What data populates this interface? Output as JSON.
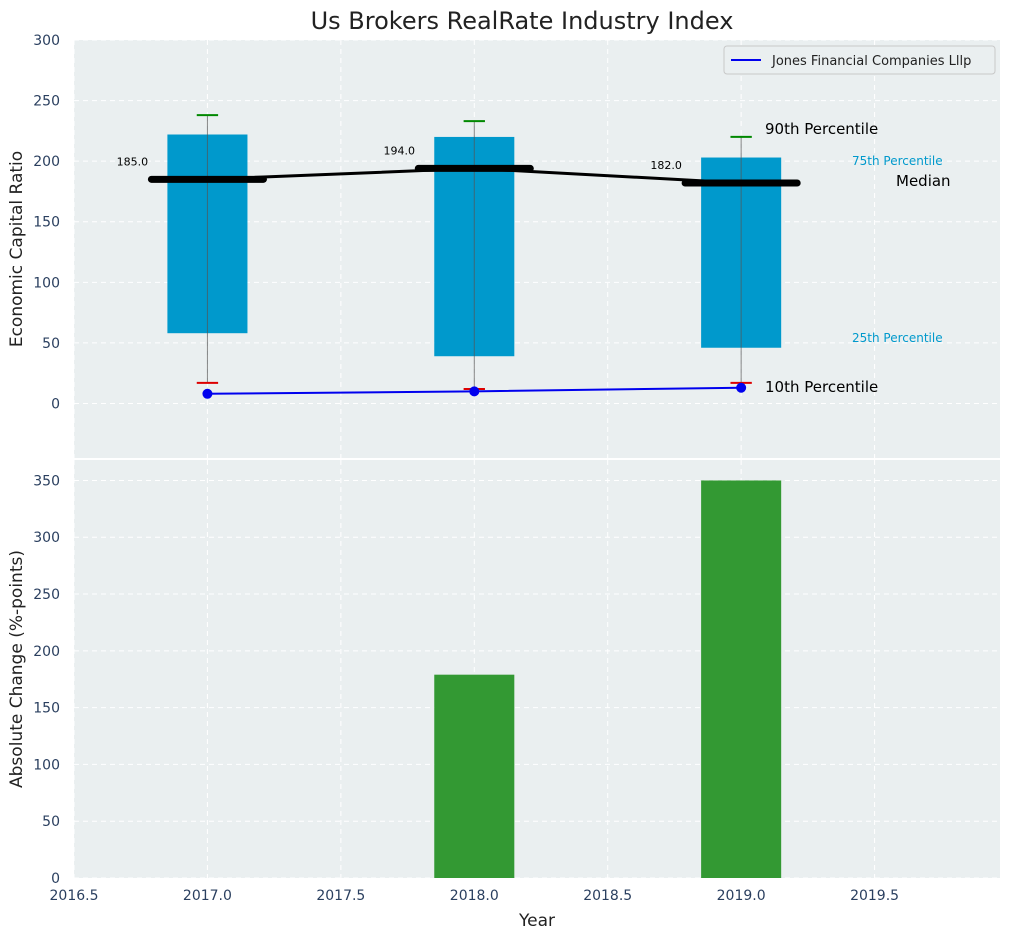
{
  "title": "Us Brokers RealRate Industry Index",
  "colors": {
    "plot_bg": "#eaeff0",
    "box": "#0099cc",
    "median": "#000000",
    "p90_cap": "#008800",
    "p10_cap": "#dd0000",
    "company_line": "#0000ee",
    "change_bar": "#339933",
    "grid": "#ffffff",
    "cyan_text": "#0099cc"
  },
  "chart_data": [
    {
      "type": "box",
      "ylabel": "Economic Capital Ratio",
      "xlim": [
        2016.5,
        2019.97
      ],
      "ylim": [
        -45,
        300
      ],
      "yticks": [
        0,
        50,
        100,
        150,
        200,
        250,
        300
      ],
      "grid": true,
      "legend_position": "top-right",
      "boxes": [
        {
          "x": 2017,
          "p10": 17,
          "p25": 58,
          "median": 185,
          "p75": 222,
          "p90": 238,
          "median_label": "185.0"
        },
        {
          "x": 2018,
          "p10": 12,
          "p25": 39,
          "median": 194,
          "p75": 220,
          "p90": 233,
          "median_label": "194.0"
        },
        {
          "x": 2019,
          "p10": 17,
          "p25": 46,
          "median": 182,
          "p75": 203,
          "p90": 220,
          "median_label": "182.0"
        }
      ],
      "series": [
        {
          "name": "Jones Financial Companies Lllp",
          "x": [
            2017,
            2018,
            2019
          ],
          "values": [
            8,
            10,
            13
          ]
        }
      ],
      "annotations": {
        "p90": "90th Percentile",
        "p75": "75th Percentile",
        "median": "Median",
        "p25": "25th Percentile",
        "p10": "10th Percentile"
      }
    },
    {
      "type": "bar",
      "xlabel": "Year",
      "ylabel": "Absolute Change (%-points)",
      "xlim": [
        2016.5,
        2019.97
      ],
      "ylim": [
        0,
        368
      ],
      "xticks": [
        2016.5,
        2017.0,
        2017.5,
        2018.0,
        2018.5,
        2019.0,
        2019.5
      ],
      "xtick_labels": [
        "2016.5",
        "2017.0",
        "2017.5",
        "2018.0",
        "2018.5",
        "2019.0",
        "2019.5"
      ],
      "yticks": [
        0,
        50,
        100,
        150,
        200,
        250,
        300,
        350
      ],
      "grid": true,
      "x": [
        2018,
        2019
      ],
      "values": [
        179,
        350
      ]
    }
  ]
}
